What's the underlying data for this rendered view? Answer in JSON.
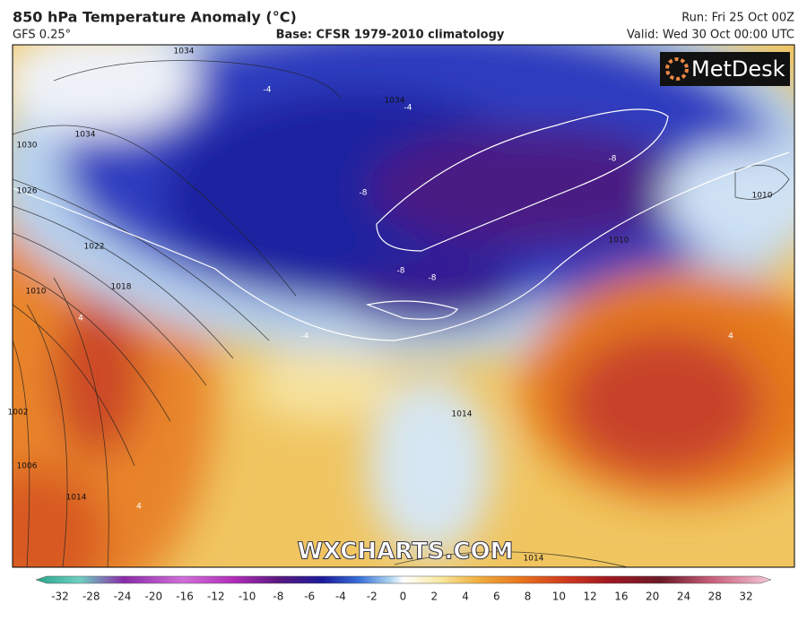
{
  "header": {
    "title": "850 hPa Temperature Anomaly (°C)",
    "subtitle": "GFS 0.25°",
    "base": "Base: CFSR 1979-2010 climatology",
    "run": "Run: Fri 25 Oct 00Z",
    "valid": "Valid: Wed 30 Oct 00:00 UTC"
  },
  "map": {
    "logo": "MetDesk",
    "watermark": "WXCHARTS.COM",
    "contour_labels": [
      "1034",
      "1034",
      "1030",
      "1034",
      "1026",
      "1022",
      "1018",
      "1010",
      "1002",
      "1006",
      "1014",
      "1014",
      "1010",
      "1010",
      "1014",
      "-4",
      "-4",
      "-8",
      "-8",
      "-8",
      "-8",
      "-4",
      "4",
      "4",
      "4"
    ]
  },
  "colorbar": {
    "labels": [
      -32,
      -28,
      -24,
      -20,
      -16,
      -12,
      -10,
      -8,
      -6,
      -4,
      -2,
      0,
      2,
      4,
      6,
      8,
      10,
      12,
      16,
      20,
      24,
      28,
      32
    ]
  }
}
